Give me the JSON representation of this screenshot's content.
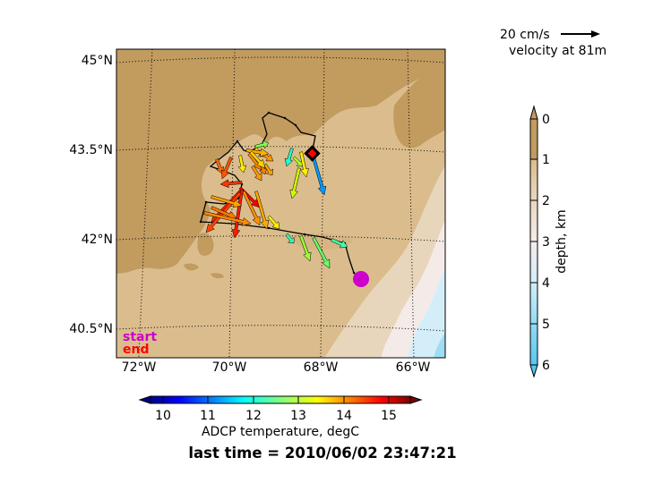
{
  "map": {
    "lat_labels": [
      "45°N",
      "43.5°N",
      "42°N",
      "40.5°N"
    ],
    "lon_labels": [
      "72°W",
      "70°W",
      "68°W",
      "66°W"
    ],
    "legend_start": "start",
    "legend_end": "end",
    "start_color": "#cc00cc",
    "end_color": "#ff0000"
  },
  "scale": {
    "speed_label": "20 cm/s",
    "depth_label": "velocity at 81m"
  },
  "depth_colorbar": {
    "label": "depth, km",
    "ticks": [
      "0",
      "1",
      "2",
      "3",
      "4",
      "5",
      "6"
    ]
  },
  "temp_colorbar": {
    "label": "ADCP temperature, degC",
    "ticks": [
      "10",
      "11",
      "12",
      "13",
      "14",
      "15"
    ]
  },
  "footer": {
    "last_time": "last time = 2010/06/02 23:47:21"
  }
}
